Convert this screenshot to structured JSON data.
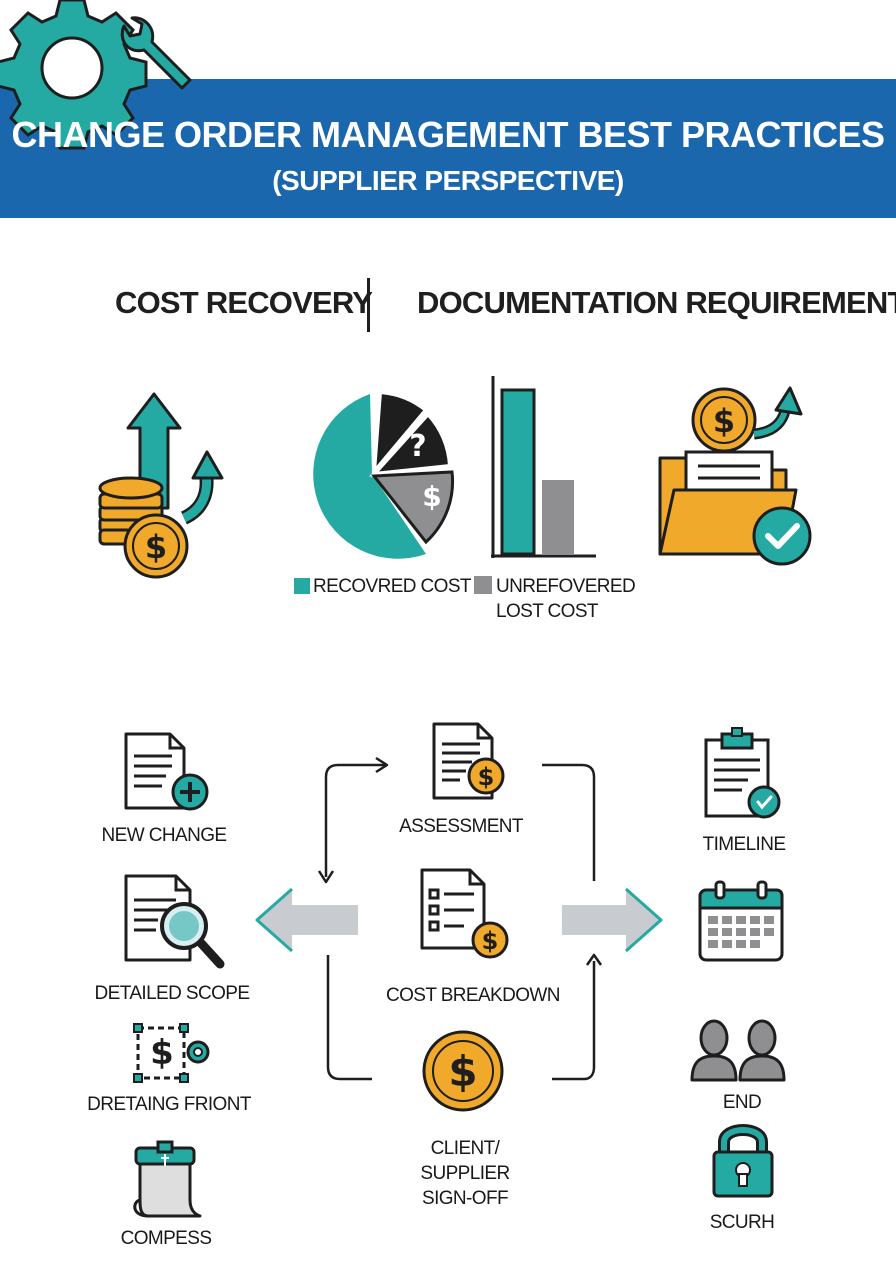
{
  "header": {
    "title_line1": "CHANGE ORDER MANAGEMENT BEST PRACTICES",
    "title_line2": "(SUPPLIER PERSPECTIVE)"
  },
  "sections": {
    "left": "COST RECOVERY",
    "right": "DOCUMENTATION REQUIREMENTS"
  },
  "chart_labels": {
    "pie_question": "?",
    "pie_dollar": "$",
    "legend_recovered": "RECOVRED COST",
    "legend_unrecovered_line1": "UNREFOVERED",
    "legend_unrecovered_line2": "LOST COST"
  },
  "process": {
    "left": [
      "NEW CHANGE",
      "DETAILED SCOPE",
      "DRETAING FRIONT",
      "COMPESS"
    ],
    "center": [
      "ASSESSMENT",
      "COST BREAKDOWN"
    ],
    "signoff": [
      "CLIENT/",
      "SUPPLIER",
      "SIGN-OFF"
    ],
    "right": [
      "TIMELINE",
      "END",
      "SCURH"
    ]
  },
  "symbols": {
    "dollar": "$",
    "check": "✓"
  },
  "colors": {
    "banner": "#1b67ad",
    "teal": "#25aaa3",
    "gold": "#f0a92b",
    "dark": "#1e1e1e",
    "gray": "#8f8f91",
    "light_gray": "#c8ccd0"
  }
}
